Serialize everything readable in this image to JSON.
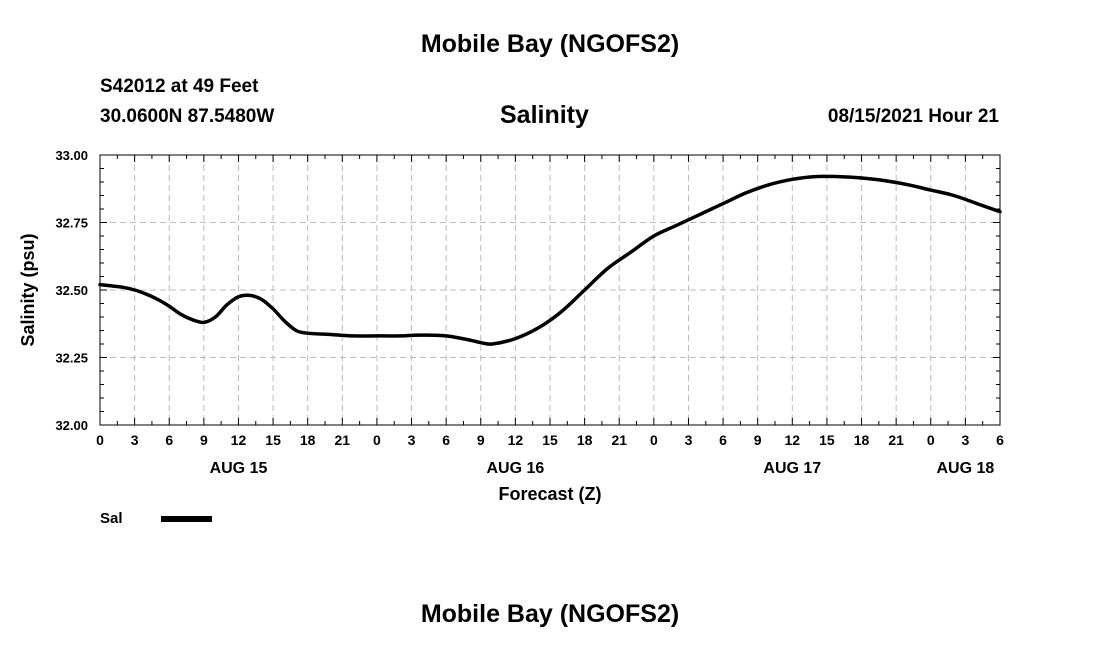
{
  "header": {
    "title": "Mobile Bay (NGOFS2)",
    "station": "S42012 at 49 Feet",
    "coords": "30.0600N  87.5480W",
    "timestamp": "08/15/2021 Hour 21"
  },
  "footer": {
    "title": "Mobile Bay (NGOFS2)"
  },
  "legend": {
    "label": "Sal"
  },
  "chart_data": {
    "type": "line",
    "title": "Salinity",
    "ylabel": "Salinity (psu)",
    "xlabel": "Forecast (Z)",
    "ylim": [
      32.0,
      33.0
    ],
    "yticks": [
      "32.00",
      "32.25",
      "32.50",
      "32.75",
      "33.00"
    ],
    "xlim_hours": [
      0,
      78
    ],
    "xtick_labels": [
      "0",
      "3",
      "6",
      "9",
      "12",
      "15",
      "18",
      "21",
      "0",
      "3",
      "6",
      "9",
      "12",
      "15",
      "18",
      "21",
      "0",
      "3",
      "6",
      "9",
      "12",
      "15",
      "18",
      "21",
      "0",
      "3",
      "6"
    ],
    "date_labels": [
      {
        "label": "AUG 15",
        "hour": 12
      },
      {
        "label": "AUG 16",
        "hour": 36
      },
      {
        "label": "AUG 17",
        "hour": 60
      },
      {
        "label": "AUG 18",
        "hour": 75
      }
    ],
    "grid": true,
    "series": [
      {
        "name": "Sal",
        "x": [
          0,
          1,
          2,
          3,
          4,
          5,
          6,
          7,
          8,
          9,
          10,
          11,
          12,
          13,
          14,
          15,
          16,
          17,
          18,
          20,
          22,
          24,
          26,
          27,
          28,
          30,
          32,
          33,
          34,
          36,
          38,
          40,
          42,
          44,
          46,
          48,
          50,
          52,
          54,
          56,
          58,
          60,
          62,
          64,
          66,
          68,
          70,
          72,
          74,
          76,
          78
        ],
        "y": [
          32.52,
          32.515,
          32.51,
          32.5,
          32.485,
          32.465,
          32.44,
          32.41,
          32.39,
          32.38,
          32.4,
          32.445,
          32.475,
          32.48,
          32.465,
          32.43,
          32.385,
          32.35,
          32.34,
          32.335,
          32.33,
          32.33,
          32.33,
          32.332,
          32.333,
          32.33,
          32.315,
          32.305,
          32.3,
          32.32,
          32.36,
          32.42,
          32.5,
          32.58,
          32.64,
          32.7,
          32.74,
          32.78,
          32.82,
          32.86,
          32.89,
          32.91,
          32.92,
          32.92,
          32.915,
          32.905,
          32.89,
          32.87,
          32.85,
          32.82,
          32.79
        ]
      }
    ]
  }
}
